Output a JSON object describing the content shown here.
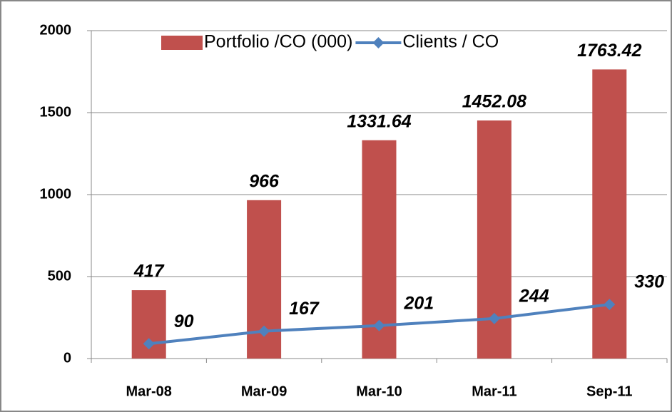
{
  "chart_data": {
    "type": "bar",
    "categories": [
      "Mar-08",
      "Mar-09",
      "Mar-10",
      "Mar-11",
      "Sep-11"
    ],
    "series": [
      {
        "name": "Portfolio /CO (000)",
        "type": "bar",
        "color": "#c0504d",
        "values": [
          417,
          966,
          1331.64,
          1452.08,
          1763.42
        ]
      },
      {
        "name": "Clients / CO",
        "type": "line",
        "color": "#4f81bd",
        "values": [
          90,
          167,
          201,
          244,
          330
        ]
      }
    ],
    "ylim": [
      0,
      2000
    ],
    "yticks": [
      0,
      500,
      1000,
      1500,
      2000
    ],
    "grid": true,
    "legend": "top"
  }
}
